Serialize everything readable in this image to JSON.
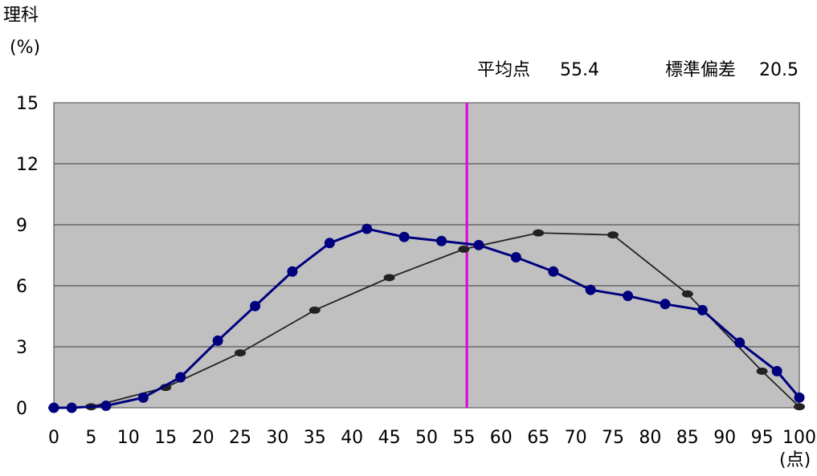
{
  "chart_data": {
    "type": "line",
    "title": "理科",
    "ylabel": "(%)",
    "xlabel": "(点)",
    "xlim": [
      0,
      100
    ],
    "ylim": [
      0,
      15
    ],
    "xticks": [
      "0",
      "5",
      "10",
      "15",
      "20",
      "25",
      "30",
      "35",
      "40",
      "45",
      "50",
      "55",
      "60",
      "65",
      "70",
      "75",
      "80",
      "85",
      "90",
      "95",
      "100"
    ],
    "yticks": [
      "0",
      "3",
      "6",
      "9",
      "12",
      "15"
    ],
    "grid": true,
    "stats": {
      "mean_label": "平均点",
      "mean_value": "55.4",
      "sd_label": "標準偏差",
      "sd_value": "20.5"
    },
    "mean_line_x": 55.4,
    "series": [
      {
        "color": "#00007f",
        "x": [
          0,
          2.4,
          7,
          12,
          17,
          22,
          27,
          32,
          37,
          42,
          47,
          52,
          57,
          62,
          67,
          72,
          77,
          82,
          87,
          92,
          97,
          100
        ],
        "y": [
          0,
          0,
          0.1,
          0.5,
          1.5,
          3.3,
          5.0,
          6.7,
          8.1,
          8.8,
          8.4,
          8.2,
          8.0,
          7.4,
          6.7,
          5.8,
          5.5,
          5.1,
          4.8,
          3.2,
          1.8,
          0.5
        ]
      },
      {
        "color": "#222222",
        "x": [
          0,
          5,
          15,
          25,
          35,
          45,
          55,
          65,
          75,
          85,
          95,
          100
        ],
        "y": [
          0,
          0.05,
          1.0,
          2.7,
          4.8,
          6.4,
          7.8,
          8.6,
          8.5,
          5.6,
          1.8,
          0.05
        ]
      }
    ],
    "colors": {
      "plot_bg": "#c0c0c0",
      "grid": "#3a3a3a",
      "mean_line": "#e000e0"
    }
  }
}
